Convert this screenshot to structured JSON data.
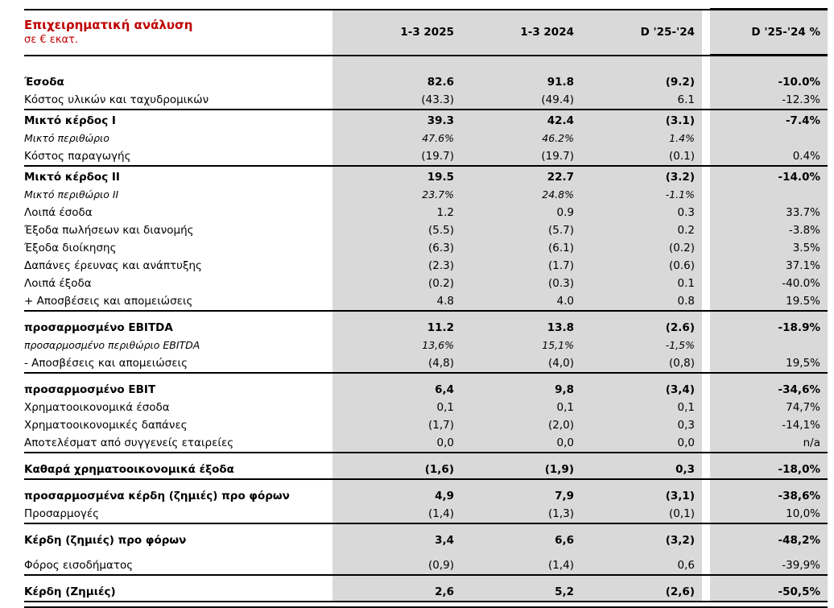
{
  "header": {
    "title": "Επιχειρηματική ανάλυση",
    "subtitle": "σε € εκατ.",
    "columns": [
      "1-3 2025",
      "1-3 2024",
      "D '25-'24",
      "D '25-'24 %"
    ]
  },
  "colors": {
    "accent_red": "#C00000",
    "column_fill": "#D9D9D9",
    "rule_black": "#000000"
  },
  "table": {
    "rows": [
      {
        "label": "Έσοδα",
        "kind": "total",
        "top": "first",
        "values": [
          "82.6",
          "91.8",
          "(9.2)",
          "-10.0%"
        ]
      },
      {
        "label": "Κόστος υλικών και ταχυδρομικών",
        "kind": "item",
        "top": "none",
        "values": [
          "(43.3)",
          "(49.4)",
          "6.1",
          "-12.3%"
        ]
      },
      {
        "label": "Μικτό κέρδος I",
        "kind": "total",
        "top": "line",
        "values": [
          "39.3",
          "42.4",
          "(3.1)",
          "-7.4%"
        ]
      },
      {
        "label": "Μικτό περιθώριο",
        "kind": "margin",
        "top": "none",
        "values": [
          "47.6%",
          "46.2%",
          "1.4%",
          ""
        ]
      },
      {
        "label": "Κόστος παραγωγής",
        "kind": "item",
        "top": "none",
        "values": [
          "(19.7)",
          "(19.7)",
          "(0.1)",
          "0.4%"
        ]
      },
      {
        "label": "Μικτό κέρδος II",
        "kind": "total",
        "top": "line",
        "values": [
          "19.5",
          "22.7",
          "(3.2)",
          "-14.0%"
        ]
      },
      {
        "label": "Μικτό περιθώριο II",
        "kind": "margin",
        "top": "none",
        "values": [
          "23.7%",
          "24.8%",
          "-1.1%",
          ""
        ]
      },
      {
        "label": "Λοιπά έσοδα",
        "kind": "item",
        "top": "none",
        "values": [
          "1.2",
          "0.9",
          "0.3",
          "33.7%"
        ]
      },
      {
        "label": "Έξοδα πωλήσεων και διανομής",
        "kind": "item",
        "top": "none",
        "values": [
          "(5.5)",
          "(5.7)",
          "0.2",
          "-3.8%"
        ]
      },
      {
        "label": "Έξοδα διοίκησης",
        "kind": "item",
        "top": "none",
        "values": [
          "(6.3)",
          "(6.1)",
          "(0.2)",
          "3.5%"
        ]
      },
      {
        "label": "Δαπάνες έρευνας και ανάπτυξης",
        "kind": "item",
        "top": "none",
        "values": [
          "(2.3)",
          "(1.7)",
          "(0.6)",
          "37.1%"
        ]
      },
      {
        "label": "Λοιπά έξοδα",
        "kind": "item",
        "top": "none",
        "values": [
          "(0.2)",
          "(0.3)",
          "0.1",
          "-40.0%"
        ]
      },
      {
        "label": "+ Αποσβέσεις και απομειώσεις",
        "kind": "item",
        "top": "none",
        "values": [
          "4.8",
          "4.0",
          "0.8",
          "19.5%"
        ]
      },
      {
        "label": "προσαρμοσμένο EBITDA",
        "kind": "total",
        "top": "line-sp",
        "values": [
          "11.2",
          "13.8",
          "(2.6)",
          "-18.9%"
        ]
      },
      {
        "label": "προσαρμοσμένο περιθώριο EBITDA",
        "kind": "margin",
        "top": "none",
        "values": [
          "13,6%",
          "15,1%",
          "-1,5%",
          ""
        ]
      },
      {
        "label": "- Αποσβέσεις και απομειώσεις",
        "kind": "item",
        "top": "none",
        "values": [
          "(4,8)",
          "(4,0)",
          "(0,8)",
          "19,5%"
        ]
      },
      {
        "label": "προσαρμοσμένο EBIT",
        "kind": "total",
        "top": "line-sp",
        "values": [
          "6,4",
          "9,8",
          "(3,4)",
          "-34,6%"
        ]
      },
      {
        "label": "Χρηματοοικονομικά έσοδα",
        "kind": "item",
        "top": "none",
        "values": [
          "0,1",
          "0,1",
          "0,1",
          "74,7%"
        ]
      },
      {
        "label": "Χρηματοοικονομικές δαπάνες",
        "kind": "item",
        "top": "none",
        "values": [
          "(1,7)",
          "(2,0)",
          "0,3",
          "-14,1%"
        ]
      },
      {
        "label": "Αποτελέσματ από συγγενείς εταιρείες",
        "kind": "item",
        "top": "none",
        "values": [
          "0,0",
          "0,0",
          "0,0",
          "n/a"
        ]
      },
      {
        "label": "Καθαρά χρηματοοικονομικά έξοδα",
        "kind": "total",
        "top": "line-sp",
        "values": [
          "(1,6)",
          "(1,9)",
          "0,3",
          "-18,0%"
        ]
      },
      {
        "label": "προσαρμοσμένα κέρδη (ζημιές) προ φόρων",
        "kind": "total",
        "top": "line-sp",
        "values": [
          "4,9",
          "7,9",
          "(3,1)",
          "-38,6%"
        ]
      },
      {
        "label": "Προσαρμογές",
        "kind": "item",
        "top": "none",
        "values": [
          "(1,4)",
          "(1,3)",
          "(0,1)",
          "10,0%"
        ]
      },
      {
        "label": "Κέρδη (ζημιές) προ φόρων",
        "kind": "total",
        "top": "line-sp",
        "values": [
          "3,4",
          "6,6",
          "(3,2)",
          "-48,2%"
        ]
      },
      {
        "label": "Φόρος εισοδήματος",
        "kind": "item",
        "top": "sp",
        "values": [
          "(0,9)",
          "(1,4)",
          "0,6",
          "-39,9%"
        ]
      },
      {
        "label": "Κέρδη (Ζημιές)",
        "kind": "total",
        "top": "line-sp",
        "values": [
          "2,6",
          "5,2",
          "(2,6)",
          "-50,5%"
        ]
      }
    ]
  }
}
